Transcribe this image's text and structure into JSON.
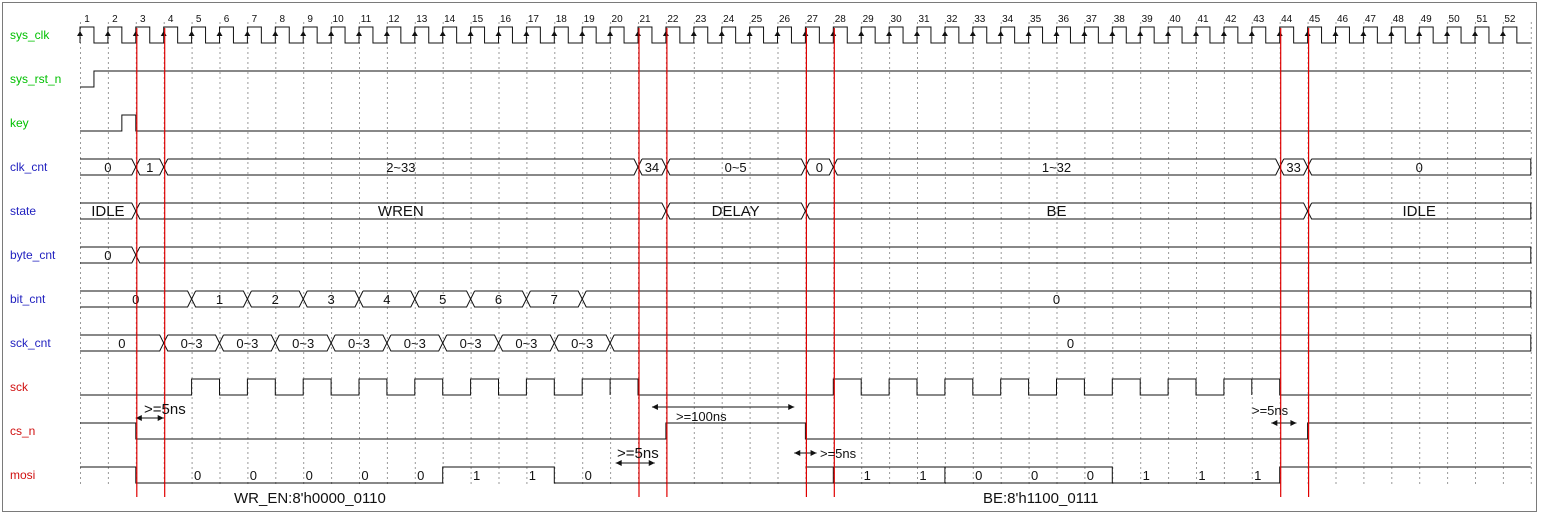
{
  "signals": [
    {
      "name": "sys_clk",
      "color": "#00c000"
    },
    {
      "name": "sys_rst_n",
      "color": "#00c000"
    },
    {
      "name": "key",
      "color": "#00c000"
    },
    {
      "name": "clk_cnt",
      "color": "#1f1fbf"
    },
    {
      "name": "state",
      "color": "#1f1fbf"
    },
    {
      "name": "byte_cnt",
      "color": "#1f1fbf"
    },
    {
      "name": "bit_cnt",
      "color": "#1f1fbf"
    },
    {
      "name": "sck_cnt",
      "color": "#1f1fbf"
    },
    {
      "name": "sck",
      "color": "#d01010"
    },
    {
      "name": "cs_n",
      "color": "#d01010"
    },
    {
      "name": "mosi",
      "color": "#d01010"
    }
  ],
  "cycle_count": 52,
  "cursor_cycles": [
    2,
    3,
    20,
    21,
    26,
    27,
    43,
    44
  ],
  "cursor_color": "#e00000",
  "buses": {
    "clk_cnt": [
      {
        "from": 0,
        "to": 2,
        "label": "0"
      },
      {
        "from": 2,
        "to": 3,
        "label": "1"
      },
      {
        "from": 3,
        "to": 20,
        "label": "2~33"
      },
      {
        "from": 20,
        "to": 21,
        "label": "34"
      },
      {
        "from": 21,
        "to": 26,
        "label": "0~5"
      },
      {
        "from": 26,
        "to": 27,
        "label": "0"
      },
      {
        "from": 27,
        "to": 43,
        "label": "1~32"
      },
      {
        "from": 43,
        "to": 44,
        "label": "33"
      },
      {
        "from": 44,
        "to": 52,
        "label": "0"
      }
    ],
    "state": [
      {
        "from": 0,
        "to": 2,
        "label": "IDLE"
      },
      {
        "from": 2,
        "to": 21,
        "label": "WREN"
      },
      {
        "from": 21,
        "to": 26,
        "label": "DELAY"
      },
      {
        "from": 26,
        "to": 44,
        "label": "BE"
      },
      {
        "from": 44,
        "to": 52,
        "label": "IDLE"
      }
    ],
    "byte_cnt": [
      {
        "from": 0,
        "to": 2,
        "label": "0"
      },
      {
        "from": 2,
        "to": 52,
        "label": ""
      }
    ],
    "bit_cnt": [
      {
        "from": 0,
        "to": 4,
        "label": "0"
      },
      {
        "from": 4,
        "to": 6,
        "label": "1"
      },
      {
        "from": 6,
        "to": 8,
        "label": "2"
      },
      {
        "from": 8,
        "to": 10,
        "label": "3"
      },
      {
        "from": 10,
        "to": 12,
        "label": "4"
      },
      {
        "from": 12,
        "to": 14,
        "label": "5"
      },
      {
        "from": 14,
        "to": 16,
        "label": "6"
      },
      {
        "from": 16,
        "to": 18,
        "label": "7"
      },
      {
        "from": 18,
        "to": 52,
        "label": "0"
      }
    ],
    "sck_cnt": [
      {
        "from": 0,
        "to": 3,
        "label": "0"
      },
      {
        "from": 3,
        "to": 5,
        "label": "0~3"
      },
      {
        "from": 5,
        "to": 7,
        "label": "0~3"
      },
      {
        "from": 7,
        "to": 9,
        "label": "0~3"
      },
      {
        "from": 9,
        "to": 11,
        "label": "0~3"
      },
      {
        "from": 11,
        "to": 13,
        "label": "0~3"
      },
      {
        "from": 13,
        "to": 15,
        "label": "0~3"
      },
      {
        "from": 15,
        "to": 17,
        "label": "0~3"
      },
      {
        "from": 17,
        "to": 19,
        "label": "0~3"
      },
      {
        "from": 19,
        "to": 52,
        "label": "0"
      }
    ]
  },
  "mosi_bits": [
    "0",
    "0",
    "0",
    "0",
    "0",
    "1",
    "1",
    "0",
    "1",
    "1",
    "0",
    "0",
    "0",
    "1",
    "1",
    "1"
  ],
  "annotations": {
    "cs_setup_1": ">=5ns",
    "cs_hold_1": ">=5ns",
    "delay_gap": ">=100ns",
    "cs_setup_2": ">=5ns",
    "cs_hold_2": ">=5ns",
    "wren_cmd": "WR_EN:8'h0000_0110",
    "be_cmd": "BE:8'h1100_0111"
  }
}
